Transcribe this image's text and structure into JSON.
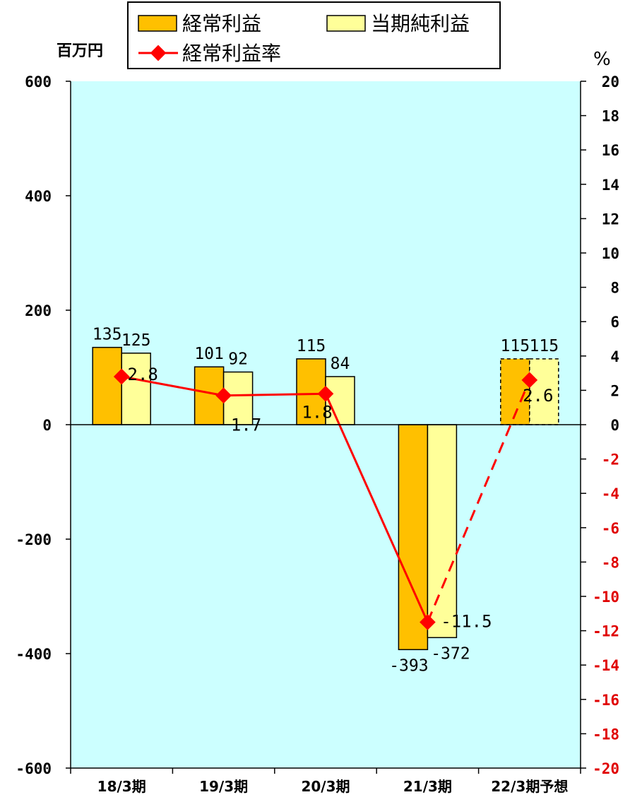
{
  "chart_data": {
    "type": "bar",
    "categories": [
      "18/3期",
      "19/3期",
      "20/3期",
      "21/3期",
      "22/3期予想"
    ],
    "series": [
      {
        "name": "経常利益",
        "values": [
          135,
          101,
          115,
          -393,
          115
        ],
        "color": "#ffc000"
      },
      {
        "name": "当期純利益",
        "values": [
          125,
          92,
          84,
          -372,
          115
        ],
        "color": "#ffff99"
      }
    ],
    "line_series": {
      "name": "経常利益率",
      "values": [
        2.8,
        1.7,
        1.8,
        -11.5,
        2.6
      ],
      "color": "#ff0000",
      "forecast_from_index": 3
    },
    "forecast_category_index": 4,
    "y_left": {
      "label": "百万円",
      "min": -600,
      "max": 600,
      "ticks": [
        600,
        400,
        200,
        0,
        -200,
        -400,
        -600
      ],
      "tick_labels": [
        "600",
        "400",
        "200",
        "0",
        "-200",
        "-400",
        "-600"
      ]
    },
    "y_right": {
      "label": "%",
      "min": -20,
      "max": 20,
      "ticks": [
        20,
        18,
        16,
        14,
        12,
        10,
        8,
        6,
        4,
        2,
        0,
        -2,
        -4,
        -6,
        -8,
        -10,
        -12,
        -14,
        -16,
        -18,
        -20
      ]
    },
    "bar_labels": [
      [
        "135",
        "101",
        "115",
        "-393",
        "115"
      ],
      [
        "125",
        "92",
        "84",
        "-372",
        "115"
      ]
    ],
    "line_labels": [
      "2.8",
      "1.7",
      "1.8",
      "-11.5",
      "2.6"
    ],
    "plot_background": "#ccffff",
    "grid": false,
    "legend_placement": "top"
  }
}
